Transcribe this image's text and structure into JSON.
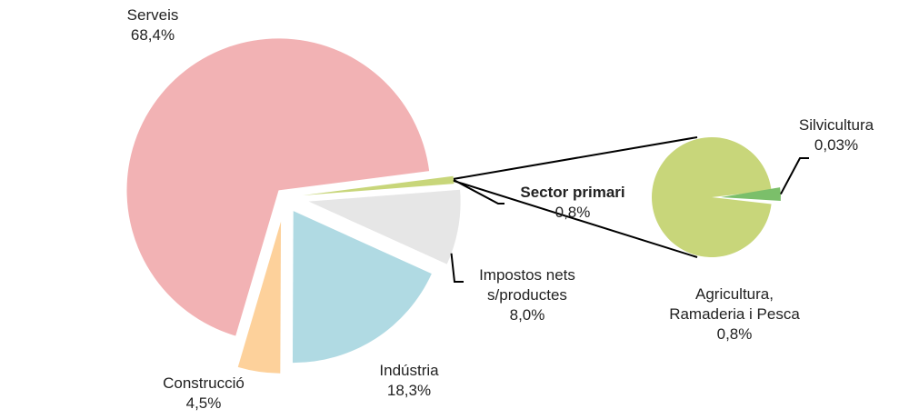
{
  "chart_data": {
    "type": "pie",
    "title": "",
    "main_pie": {
      "slices": [
        {
          "name": "Sector primari",
          "value": 0.8,
          "value_label": "0,8%",
          "color": "#c8d67a"
        },
        {
          "name": "Impostos nets s/productes",
          "name_lines": [
            "Impostos nets",
            "s/productes"
          ],
          "value": 8.0,
          "value_label": "8,0%",
          "color": "#e6e6e6"
        },
        {
          "name": "Indústria",
          "value": 18.3,
          "value_label": "18,3%",
          "color": "#b0dae3"
        },
        {
          "name": "Construcció",
          "value": 4.5,
          "value_label": "4,5%",
          "color": "#fdd19b"
        },
        {
          "name": "Serveis",
          "value": 68.4,
          "value_label": "68,4%",
          "color": "#f2b2b4"
        }
      ]
    },
    "secondary_pie": {
      "breakdown_of": "Sector primari",
      "slices": [
        {
          "name": "Agricultura, Ramaderia i Pesca",
          "name_lines": [
            "Agricultura,",
            "Ramaderia i Pesca"
          ],
          "value": 0.8,
          "value_label": "0,8%",
          "color": "#c8d67a"
        },
        {
          "name": "Silvicultura",
          "value": 0.03,
          "value_label": "0,03%",
          "color": "#7bbf6a"
        }
      ]
    },
    "legend": "none"
  }
}
